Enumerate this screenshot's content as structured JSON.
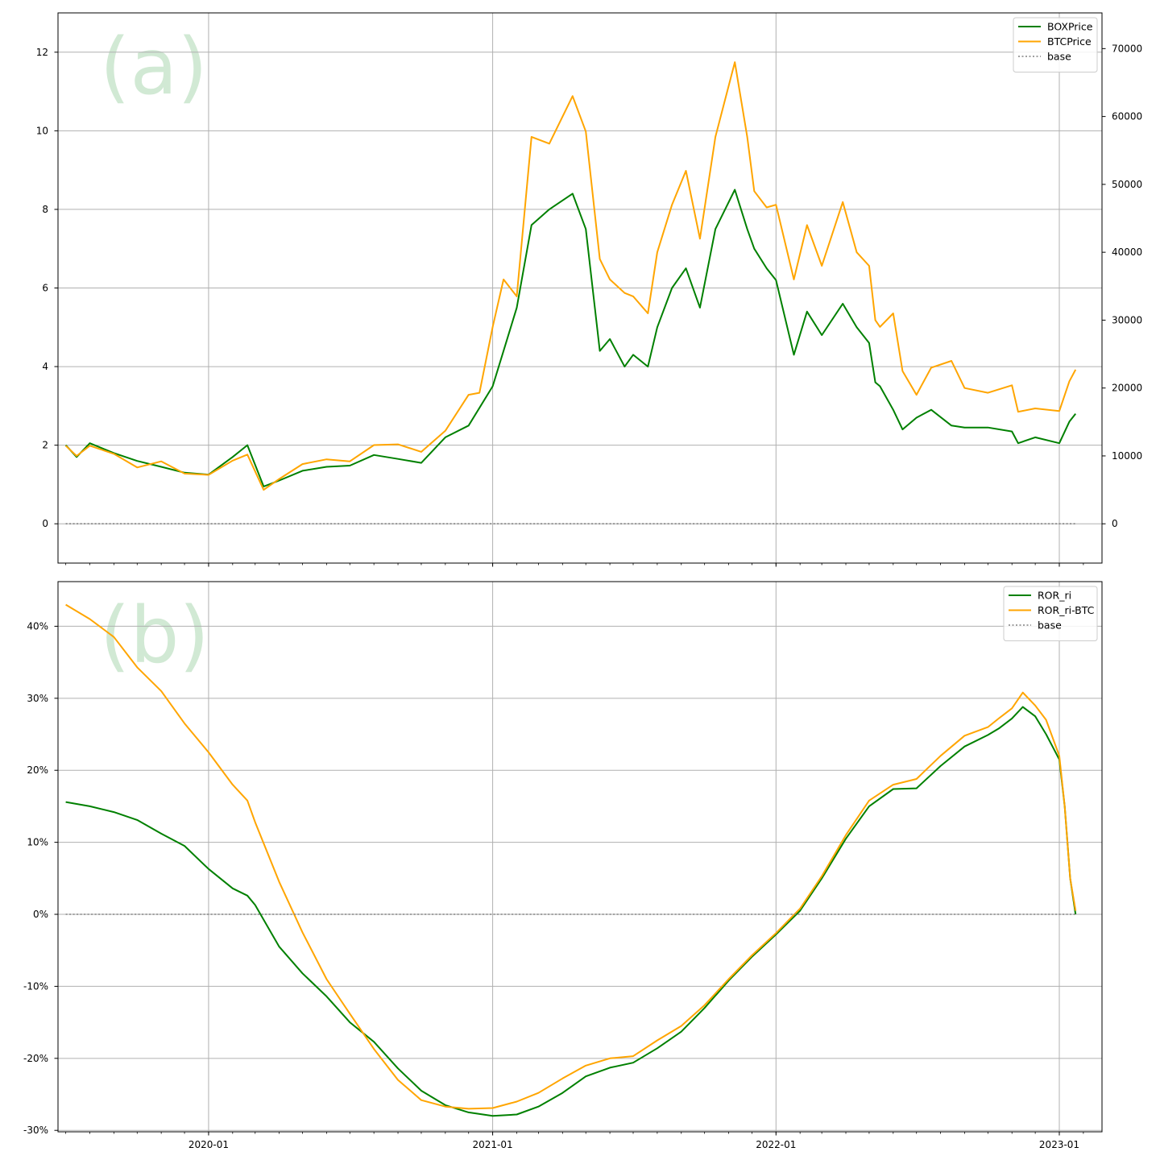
{
  "chart_data": [
    {
      "type": "line",
      "panel_label": "(a)",
      "x_ticks": [
        "2020-01",
        "2021-01",
        "2022-01",
        "2023-01"
      ],
      "x_range": [
        "2019-06-21",
        "2023-02-25"
      ],
      "left_axis": {
        "ylim": [
          -1,
          13
        ],
        "ticks": [
          "0",
          "2",
          "4",
          "6",
          "8",
          "10",
          "12"
        ]
      },
      "right_axis": {
        "ylim": [
          -5789,
          75263
        ],
        "ticks": [
          "0",
          "10000",
          "20000",
          "30000",
          "40000",
          "50000",
          "60000",
          "70000"
        ]
      },
      "grid": true,
      "legend_position": "top-right",
      "series": [
        {
          "name": "BOXPrice",
          "axis": "left",
          "color": "#008000",
          "style": "solid",
          "x": [
            "2019-07-01",
            "2019-07-15",
            "2019-08-01",
            "2019-09-01",
            "2019-10-01",
            "2019-11-01",
            "2019-12-01",
            "2020-01-01",
            "2020-02-01",
            "2020-02-20",
            "2020-03-12",
            "2020-04-01",
            "2020-05-01",
            "2020-06-01",
            "2020-07-01",
            "2020-08-01",
            "2020-09-01",
            "2020-10-01",
            "2020-11-01",
            "2020-12-01",
            "2020-12-15",
            "2021-01-01",
            "2021-01-15",
            "2021-02-01",
            "2021-02-20",
            "2021-03-15",
            "2021-04-14",
            "2021-05-01",
            "2021-05-19",
            "2021-06-01",
            "2021-06-20",
            "2021-07-01",
            "2021-07-20",
            "2021-08-01",
            "2021-08-20",
            "2021-09-07",
            "2021-09-25",
            "2021-10-15",
            "2021-11-09",
            "2021-11-25",
            "2021-12-04",
            "2021-12-20",
            "2022-01-01",
            "2022-01-24",
            "2022-02-10",
            "2022-03-01",
            "2022-03-28",
            "2022-04-15",
            "2022-05-01",
            "2022-05-09",
            "2022-05-15",
            "2022-06-01",
            "2022-06-13",
            "2022-07-01",
            "2022-07-20",
            "2022-08-15",
            "2022-09-01",
            "2022-10-01",
            "2022-11-01",
            "2022-11-09",
            "2022-12-01",
            "2023-01-01",
            "2023-01-14",
            "2023-01-22"
          ],
          "y": [
            2.0,
            1.7,
            2.05,
            1.8,
            1.6,
            1.45,
            1.3,
            1.25,
            1.7,
            2.0,
            0.95,
            1.1,
            1.35,
            1.45,
            1.48,
            1.75,
            1.65,
            1.55,
            2.2,
            2.5,
            2.95,
            3.5,
            4.4,
            5.5,
            7.6,
            8.0,
            8.4,
            7.5,
            4.4,
            4.7,
            4.0,
            4.3,
            4.0,
            5.0,
            6.0,
            6.5,
            5.5,
            7.5,
            8.5,
            7.5,
            7.0,
            6.5,
            6.2,
            4.3,
            5.4,
            4.8,
            5.6,
            5.0,
            4.6,
            3.6,
            3.5,
            2.9,
            2.4,
            2.7,
            2.9,
            2.5,
            2.45,
            2.45,
            2.35,
            2.05,
            2.2,
            2.05,
            2.6,
            2.8
          ]
        },
        {
          "name": "BTCPrice",
          "axis": "right",
          "color": "#ffa500",
          "style": "solid",
          "x": [
            "2019-07-01",
            "2019-07-15",
            "2019-08-01",
            "2019-09-01",
            "2019-10-01",
            "2019-11-01",
            "2019-12-01",
            "2020-01-01",
            "2020-02-01",
            "2020-02-20",
            "2020-03-12",
            "2020-04-01",
            "2020-05-01",
            "2020-06-01",
            "2020-07-01",
            "2020-08-01",
            "2020-09-01",
            "2020-10-01",
            "2020-11-01",
            "2020-12-01",
            "2020-12-15",
            "2021-01-01",
            "2021-01-15",
            "2021-02-01",
            "2021-02-20",
            "2021-03-15",
            "2021-04-14",
            "2021-05-01",
            "2021-05-19",
            "2021-06-01",
            "2021-06-20",
            "2021-07-01",
            "2021-07-20",
            "2021-08-01",
            "2021-08-20",
            "2021-09-07",
            "2021-09-25",
            "2021-10-15",
            "2021-11-09",
            "2021-11-25",
            "2021-12-04",
            "2021-12-20",
            "2022-01-01",
            "2022-01-24",
            "2022-02-10",
            "2022-03-01",
            "2022-03-28",
            "2022-04-15",
            "2022-05-01",
            "2022-05-09",
            "2022-05-15",
            "2022-06-01",
            "2022-06-13",
            "2022-07-01",
            "2022-07-20",
            "2022-08-15",
            "2022-09-01",
            "2022-10-01",
            "2022-11-01",
            "2022-11-09",
            "2022-12-01",
            "2023-01-01",
            "2023-01-14",
            "2023-01-22"
          ],
          "y": [
            11500,
            10000,
            11500,
            10300,
            8300,
            9200,
            7400,
            7200,
            9300,
            10200,
            5000,
            6600,
            8800,
            9500,
            9200,
            11600,
            11700,
            10600,
            13700,
            19000,
            19300,
            29000,
            36000,
            33500,
            57000,
            56000,
            63000,
            57800,
            39000,
            36000,
            34000,
            33500,
            31000,
            40000,
            47000,
            52000,
            42000,
            57000,
            68000,
            57000,
            49000,
            46600,
            47000,
            36000,
            44000,
            38000,
            47400,
            40000,
            38000,
            30000,
            29000,
            31000,
            22500,
            19000,
            23000,
            24000,
            20000,
            19300,
            20400,
            16500,
            17000,
            16600,
            21000,
            22700
          ]
        },
        {
          "name": "base",
          "axis": "left",
          "color": "#808080",
          "style": "dotted",
          "x": [
            "2019-07-01",
            "2023-01-22"
          ],
          "y": [
            0,
            0
          ]
        }
      ]
    },
    {
      "type": "line",
      "panel_label": "(b)",
      "x_ticks": [
        "2020-01",
        "2021-01",
        "2022-01",
        "2023-01"
      ],
      "x_range": [
        "2019-06-21",
        "2023-02-25"
      ],
      "ylim": [
        -30.2,
        46.2
      ],
      "y_ticks": [
        "-30%",
        "-20%",
        "-10%",
        "0%",
        "10%",
        "20%",
        "30%",
        "40%"
      ],
      "y_unit": "%",
      "grid": true,
      "legend_position": "top-right",
      "series": [
        {
          "name": "ROR_ri",
          "color": "#008000",
          "style": "solid",
          "x": [
            "2019-07-01",
            "2019-08-01",
            "2019-09-01",
            "2019-10-01",
            "2019-11-01",
            "2019-12-01",
            "2020-01-01",
            "2020-02-01",
            "2020-02-20",
            "2020-03-01",
            "2020-04-01",
            "2020-05-01",
            "2020-06-01",
            "2020-07-01",
            "2020-08-01",
            "2020-09-01",
            "2020-10-01",
            "2020-11-01",
            "2020-12-01",
            "2021-01-01",
            "2021-02-01",
            "2021-03-01",
            "2021-04-01",
            "2021-05-01",
            "2021-06-01",
            "2021-07-01",
            "2021-08-01",
            "2021-09-01",
            "2021-10-01",
            "2021-11-01",
            "2021-12-01",
            "2022-01-01",
            "2022-02-01",
            "2022-03-01",
            "2022-04-01",
            "2022-05-01",
            "2022-06-01",
            "2022-07-01",
            "2022-08-01",
            "2022-09-01",
            "2022-10-01",
            "2022-10-15",
            "2022-11-01",
            "2022-11-15",
            "2022-12-01",
            "2022-12-15",
            "2023-01-01",
            "2023-01-08",
            "2023-01-15",
            "2023-01-22"
          ],
          "y": [
            15.6,
            15.0,
            14.2,
            13.1,
            11.2,
            9.5,
            6.3,
            3.6,
            2.6,
            1.3,
            -4.5,
            -8.2,
            -11.4,
            -15.0,
            -17.7,
            -21.4,
            -24.5,
            -26.5,
            -27.5,
            -28.0,
            -27.8,
            -26.7,
            -24.8,
            -22.5,
            -21.3,
            -20.6,
            -18.6,
            -16.3,
            -13.0,
            -9.2,
            -5.9,
            -2.8,
            0.5,
            5.0,
            10.5,
            15.0,
            17.4,
            17.5,
            20.6,
            23.3,
            24.9,
            25.8,
            27.2,
            28.8,
            27.5,
            25.0,
            21.5,
            15.0,
            5.0,
            0.0
          ]
        },
        {
          "name": "ROR_ri-BTC",
          "color": "#ffa500",
          "style": "solid",
          "x": [
            "2019-07-01",
            "2019-08-01",
            "2019-09-01",
            "2019-10-01",
            "2019-11-01",
            "2019-12-01",
            "2020-01-01",
            "2020-02-01",
            "2020-02-20",
            "2020-03-01",
            "2020-04-01",
            "2020-05-01",
            "2020-06-01",
            "2020-07-01",
            "2020-08-01",
            "2020-09-01",
            "2020-10-01",
            "2020-11-01",
            "2020-12-01",
            "2021-01-01",
            "2021-02-01",
            "2021-03-01",
            "2021-04-01",
            "2021-05-01",
            "2021-06-01",
            "2021-07-01",
            "2021-08-01",
            "2021-09-01",
            "2021-10-01",
            "2021-11-01",
            "2021-12-01",
            "2022-01-01",
            "2022-02-01",
            "2022-03-01",
            "2022-04-01",
            "2022-05-01",
            "2022-06-01",
            "2022-07-01",
            "2022-08-01",
            "2022-09-01",
            "2022-10-01",
            "2022-10-15",
            "2022-11-01",
            "2022-11-15",
            "2022-12-01",
            "2022-12-15",
            "2023-01-01",
            "2023-01-08",
            "2023-01-15",
            "2023-01-22"
          ],
          "y": [
            43.0,
            41.0,
            38.5,
            34.3,
            31.0,
            26.5,
            22.5,
            18.0,
            15.8,
            12.8,
            4.5,
            -2.5,
            -9.0,
            -13.8,
            -18.7,
            -23.0,
            -25.8,
            -26.7,
            -27.0,
            -26.9,
            -26.0,
            -24.8,
            -22.8,
            -21.0,
            -20.0,
            -19.7,
            -17.5,
            -15.5,
            -12.6,
            -9.0,
            -5.7,
            -2.6,
            0.8,
            5.3,
            11.0,
            15.8,
            18.0,
            18.8,
            22.0,
            24.8,
            26.0,
            27.2,
            28.6,
            30.8,
            29.0,
            27.0,
            22.0,
            15.0,
            5.0,
            0.5
          ]
        },
        {
          "name": "base",
          "color": "#808080",
          "style": "dotted",
          "x": [
            "2019-07-01",
            "2023-01-22"
          ],
          "y": [
            0,
            0
          ]
        }
      ]
    }
  ]
}
